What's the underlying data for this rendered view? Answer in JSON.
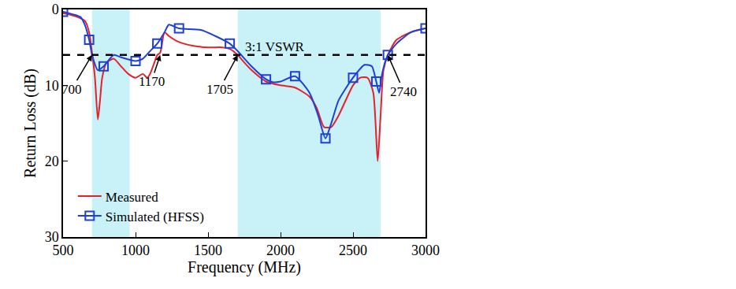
{
  "chart_data": {
    "type": "line",
    "x_label": "Frequency (MHz)",
    "y_label": "Return Loss (dB)",
    "xlim": [
      500,
      3000
    ],
    "xticks": [
      500,
      1000,
      1500,
      2000,
      2500,
      3000
    ],
    "ylim": [
      0,
      30
    ],
    "yticks": [
      0,
      10,
      20,
      30
    ],
    "grid": false,
    "legend": "lower left",
    "series": [
      {
        "name": "Measured",
        "color": "#e8202a",
        "line_style": "solid",
        "marker": "none",
        "x": [
          500,
          550,
          600,
          650,
          680,
          700,
          720,
          740,
          755,
          770,
          800,
          850,
          900,
          950,
          1000,
          1050,
          1080,
          1100,
          1130,
          1150,
          1170,
          1200,
          1230,
          1300,
          1400,
          1500,
          1600,
          1650,
          1705,
          1750,
          1800,
          1900,
          2000,
          2100,
          2200,
          2250,
          2300,
          2350,
          2400,
          2500,
          2550,
          2600,
          2640,
          2670,
          2690,
          2710,
          2740,
          2800,
          2900,
          3000
        ],
        "values": [
          0.5,
          0.7,
          1.0,
          1.5,
          3.0,
          5.7,
          9.0,
          14.5,
          12.0,
          9.0,
          7.0,
          6.5,
          7.5,
          8.5,
          9.0,
          8.5,
          9.0,
          8.5,
          7.0,
          6.0,
          5.7,
          3.0,
          3.5,
          4.3,
          4.8,
          5.0,
          5.0,
          5.2,
          6.0,
          7.0,
          8.0,
          9.5,
          10.0,
          10.3,
          11.5,
          13.0,
          15.5,
          15.5,
          14.0,
          10.0,
          9.0,
          9.0,
          11.0,
          20.0,
          14.0,
          8.0,
          6.0,
          4.0,
          3.0,
          2.5
        ]
      },
      {
        "name": "Simulated (HFSS)",
        "color": "#1f3fd8",
        "line_style": "solid",
        "marker": "square-open",
        "x": [
          500,
          620,
          650,
          680,
          700,
          740,
          780,
          850,
          900,
          1000,
          1050,
          1100,
          1150,
          1200,
          1230,
          1300,
          1450,
          1550,
          1650,
          1705,
          1800,
          1900,
          1950,
          2000,
          2100,
          2200,
          2260,
          2310,
          2350,
          2400,
          2500,
          2580,
          2630,
          2660,
          2680,
          2700,
          2740,
          2800,
          2900,
          3000
        ],
        "values": [
          0.3,
          1.0,
          2.0,
          4.0,
          6.0,
          8.0,
          7.5,
          6.0,
          6.3,
          6.8,
          6.5,
          5.5,
          4.5,
          3.0,
          2.0,
          2.5,
          2.7,
          3.5,
          4.5,
          5.5,
          7.5,
          9.2,
          9.6,
          9.5,
          8.8,
          11.0,
          14.0,
          17.0,
          15.0,
          12.0,
          9.0,
          7.3,
          7.5,
          9.5,
          11.0,
          8.5,
          6.0,
          4.5,
          3.0,
          2.5
        ]
      }
    ],
    "shaded_bands": [
      [
        700,
        960
      ],
      [
        1705,
        2690
      ]
    ],
    "reference_line": {
      "value": 6,
      "label": "3:1 VSWR",
      "label_x": 1960,
      "label_y": 4.9
    },
    "annotations": [
      {
        "text": "700",
        "x": 700,
        "y": 6,
        "text_x": 560,
        "text_y": 10.5
      },
      {
        "text": "1170",
        "x": 1170,
        "y": 6,
        "text_x": 1110,
        "text_y": 9.5
      },
      {
        "text": "1705",
        "x": 1705,
        "y": 6,
        "text_x": 1580,
        "text_y": 10.5
      },
      {
        "text": "2740",
        "x": 2740,
        "y": 6,
        "text_x": 2850,
        "text_y": 10.8
      }
    ]
  }
}
